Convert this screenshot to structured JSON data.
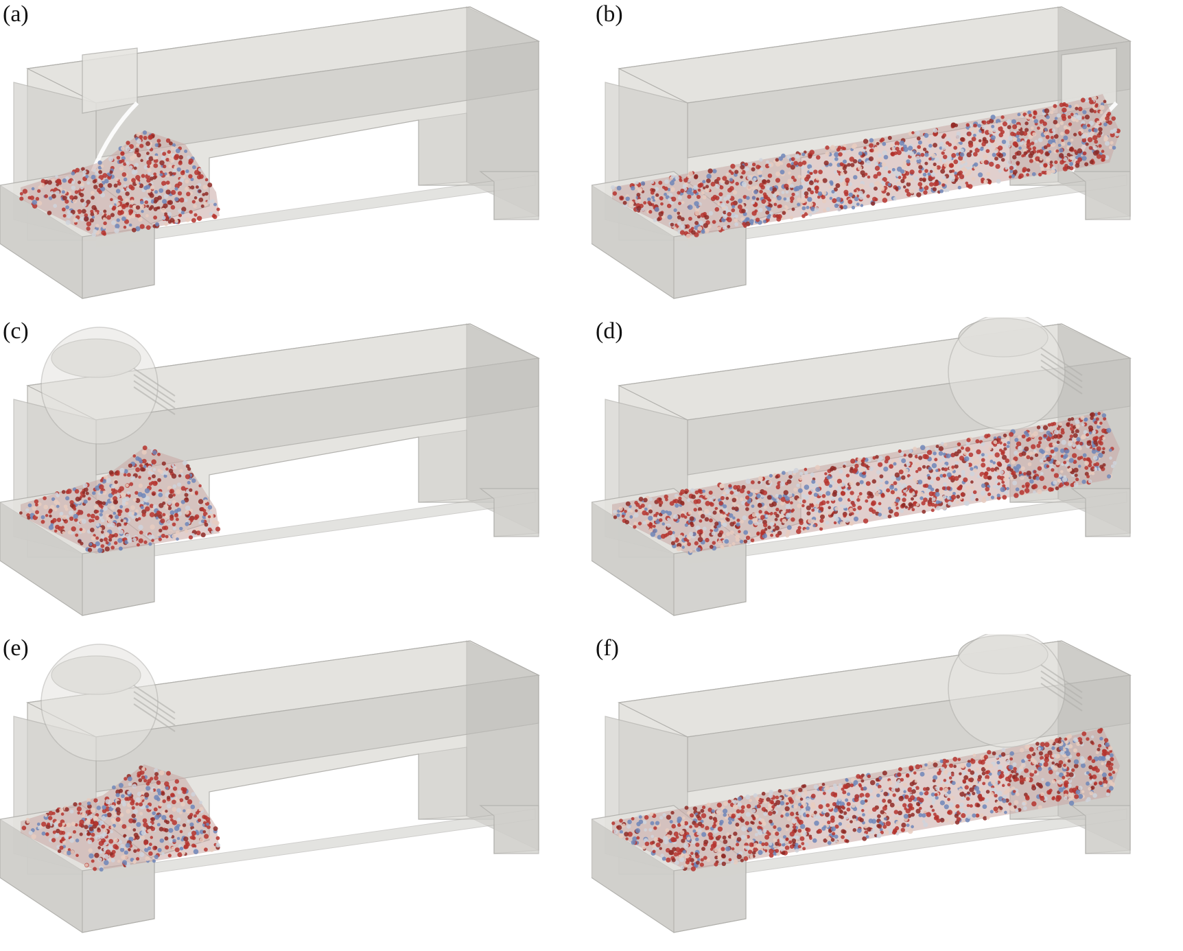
{
  "figure": {
    "panels": [
      {
        "id": "a",
        "label": "(a)",
        "fill_fraction": 0.32,
        "mechanism": "flap-gate",
        "material_end": "left"
      },
      {
        "id": "b",
        "label": "(b)",
        "fill_fraction": 1.0,
        "mechanism": "flap-gate",
        "material_end": "right"
      },
      {
        "id": "c",
        "label": "(c)",
        "fill_fraction": 0.34,
        "mechanism": "rotary-drum",
        "material_end": "left"
      },
      {
        "id": "d",
        "label": "(d)",
        "fill_fraction": 1.0,
        "mechanism": "rotary-drum",
        "material_end": "right"
      },
      {
        "id": "e",
        "label": "(e)",
        "fill_fraction": 0.32,
        "mechanism": "rotary-drum",
        "material_end": "left"
      },
      {
        "id": "f",
        "label": "(f)",
        "fill_fraction": 1.0,
        "mechanism": "rotary-drum",
        "material_end": "right"
      }
    ]
  },
  "colors": {
    "housing_light": "#e4e3df",
    "housing_mid": "#d2d1cd",
    "housing_dark": "#bdbcb8",
    "edge": "#b0afab",
    "particle_red": "#b5342e",
    "particle_dark_red": "#8e2a26",
    "particle_blue": "#6f86b8",
    "particle_light": "#e8cdbf",
    "particle_pale": "#cfd4dc"
  }
}
